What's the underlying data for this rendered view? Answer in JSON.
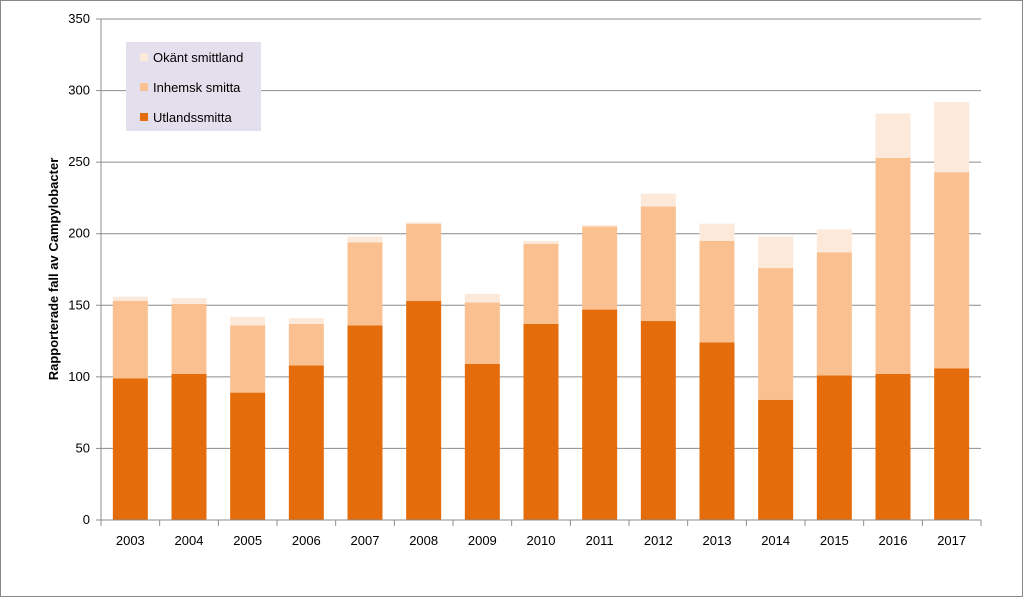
{
  "chart_data": {
    "type": "bar",
    "stacked": true,
    "categories": [
      "2003",
      "2004",
      "2005",
      "2006",
      "2007",
      "2008",
      "2009",
      "2010",
      "2011",
      "2012",
      "2013",
      "2014",
      "2015",
      "2016",
      "2017"
    ],
    "series": [
      {
        "name": "Utlandssmitta",
        "color": "#E46C0A",
        "values": [
          99,
          102,
          89,
          108,
          136,
          153,
          109,
          137,
          147,
          139,
          124,
          84,
          101,
          102,
          106
        ]
      },
      {
        "name": "Inhemsk smitta",
        "color": "#FAC090",
        "values": [
          54,
          49,
          47,
          29,
          58,
          54,
          43,
          56,
          58,
          80,
          71,
          92,
          86,
          151,
          137
        ]
      },
      {
        "name": "Okänt smittland",
        "color": "#FDE9D9",
        "values": [
          3,
          4,
          6,
          4,
          4,
          1,
          6,
          2,
          1,
          9,
          12,
          22,
          16,
          31,
          49
        ]
      }
    ],
    "ylabel": "Rapporterade fall av Campylobacter",
    "xlabel": "",
    "title": "",
    "ylim": [
      0,
      350
    ],
    "yticks": [
      0,
      50,
      100,
      150,
      200,
      250,
      300,
      350
    ],
    "grid": true,
    "legend_position": "top-left",
    "legend_order": [
      "Okänt smittland",
      "Inhemsk smitta",
      "Utlandssmitta"
    ],
    "legend_background": "#E4DFEC"
  }
}
